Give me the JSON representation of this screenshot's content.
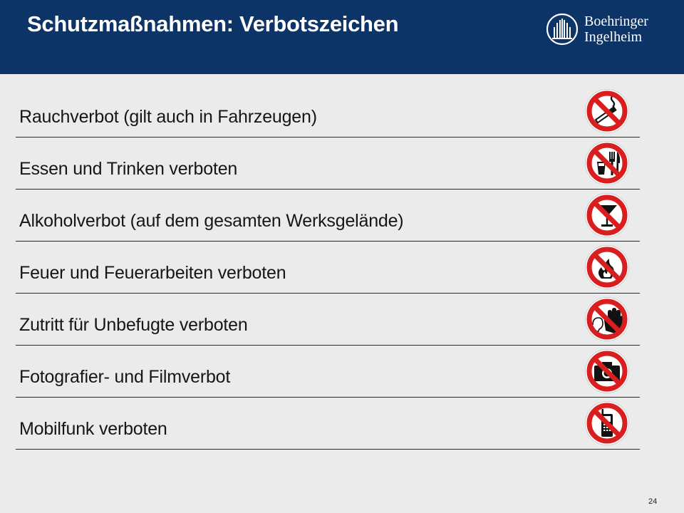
{
  "header": {
    "title": "Schutzmaßnahmen: Verbotszeichen",
    "logo": {
      "line1": "Boehringer",
      "line2": "Ingelheim",
      "icon": "boehringer-ingelheim-logo-icon"
    }
  },
  "items": [
    {
      "label": "Rauchverbot (gilt auch in Fahrzeugen)",
      "icon": "no-smoking-sign-icon"
    },
    {
      "label": "Essen und Trinken verboten",
      "icon": "no-eating-drinking-sign-icon"
    },
    {
      "label": "Alkoholverbot (auf dem gesamten Werksgelände)",
      "icon": "no-alcohol-sign-icon"
    },
    {
      "label": "Feuer und Feuerarbeiten verboten",
      "icon": "no-fire-sign-icon"
    },
    {
      "label": "Zutritt für Unbefugte verboten",
      "icon": "no-entry-unauthorized-sign-icon"
    },
    {
      "label": "Fotografier- und Filmverbot",
      "icon": "no-photography-sign-icon"
    },
    {
      "label": "Mobilfunk verboten",
      "icon": "no-mobile-phone-sign-icon"
    }
  ],
  "page_number": "24",
  "colors": {
    "header_bg": "#0c3466",
    "sign_red": "#d81e1e",
    "background": "#ebebeb"
  }
}
